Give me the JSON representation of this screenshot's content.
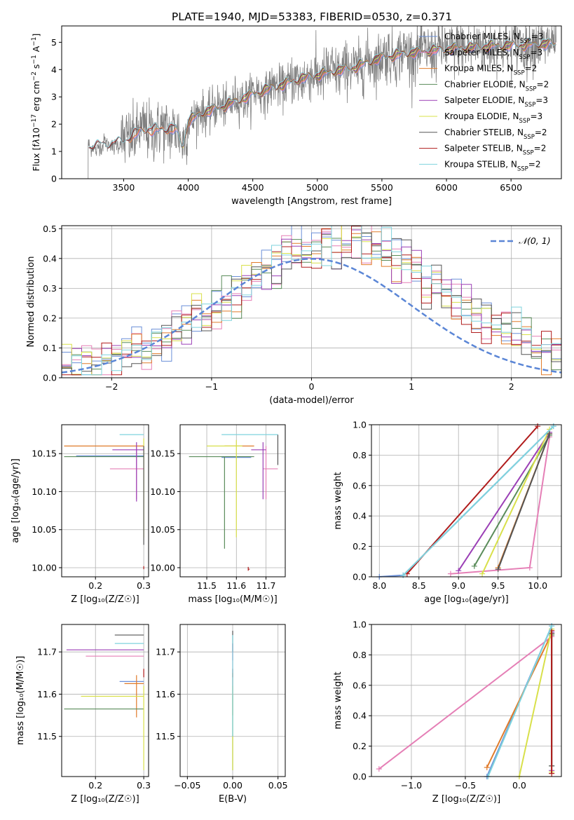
{
  "figure_title": "PLATE=1940, MJD=53383, FIBERID=0530, z=0.371",
  "colors": {
    "chab_miles": "#6a8fd8",
    "salp_miles": "#e57fb6",
    "krou_miles": "#e07b2a",
    "chab_elodie": "#5a8c5a",
    "salp_elodie": "#9b3fb6",
    "krou_elodie": "#d8e04a",
    "chab_stelib": "#555555",
    "salp_stelib": "#b01c1c",
    "krou_stelib": "#7fd3dd",
    "data": "#808080",
    "gauss": "#5b86d6"
  },
  "series_names": [
    {
      "key": "chab_miles",
      "label": "Chabrier MILES, N",
      "sub": "SSP",
      "tail": "=3"
    },
    {
      "key": "salp_miles",
      "label": "Salpeter MILES, N",
      "sub": "SSP",
      "tail": "=3"
    },
    {
      "key": "krou_miles",
      "label": "Kroupa MILES, N",
      "sub": "SSP",
      "tail": "=2"
    },
    {
      "key": "chab_elodie",
      "label": "Chabrier ELODIE, N",
      "sub": "SSP",
      "tail": "=2"
    },
    {
      "key": "salp_elodie",
      "label": "Salpeter ELODIE, N",
      "sub": "SSP",
      "tail": "=3"
    },
    {
      "key": "krou_elodie",
      "label": "Kroupa ELODIE, N",
      "sub": "SSP",
      "tail": "=3"
    },
    {
      "key": "chab_stelib",
      "label": "Chabrier STELIB, N",
      "sub": "SSP",
      "tail": "=2"
    },
    {
      "key": "salp_stelib",
      "label": "Salpeter STELIB, N",
      "sub": "SSP",
      "tail": "=2"
    },
    {
      "key": "krou_stelib",
      "label": "Kroupa STELIB, N",
      "sub": "SSP",
      "tail": "=2"
    }
  ],
  "labels": {
    "spec_x": "wavelength [Angstrom, rest frame]",
    "spec_y_html": "Flux [f<tspan font-style='italic'>λ</tspan>10<tspan baseline-shift='super' font-size='9'>−17</tspan> erg cm<tspan baseline-shift='super' font-size='9'>−2</tspan> s<tspan baseline-shift='super' font-size='9'>−1</tspan> A<tspan baseline-shift='super' font-size='9'>−1</tspan>]",
    "hist_x": "(data-model)/error",
    "hist_y": "Normed distribution",
    "hist_legend": "𝒩(0, 1)",
    "z_x": "Z [log₁₀(Z/Z☉)]",
    "mass_x": "mass [log₁₀(M/M☉)]",
    "age_y": "age  [log₁₀(age/yr)]",
    "mass_y": "mass [log₁₀(M/M☉)]",
    "massweight_y": "mass weight",
    "age_x": "age  [log₁₀(age/yr)]",
    "ebv_x": "E(B-V)"
  },
  "chart_data": [
    {
      "id": "spectrum",
      "type": "line",
      "xlabel": "wavelength [Angstrom, rest frame]",
      "ylabel": "Flux [fλ10^-17 erg cm^-2 s^-1 A^-1]",
      "xlim": [
        3020,
        6890
      ],
      "ylim": [
        0,
        5.6
      ],
      "xticks": [
        3500,
        4000,
        4500,
        5000,
        5500,
        6000,
        6500
      ],
      "yticks": [
        0,
        1,
        2,
        3,
        4,
        5
      ],
      "legend": "right",
      "continuum_knots": [
        [
          3230,
          1.15
        ],
        [
          3400,
          1.25
        ],
        [
          3500,
          1.35
        ],
        [
          3600,
          1.7
        ],
        [
          3700,
          1.8
        ],
        [
          3800,
          1.8
        ],
        [
          3900,
          1.85
        ],
        [
          3960,
          1.2
        ],
        [
          4000,
          2.1
        ],
        [
          4100,
          2.4
        ],
        [
          4300,
          2.7
        ],
        [
          4500,
          3.1
        ],
        [
          4700,
          3.4
        ],
        [
          4900,
          3.7
        ],
        [
          5100,
          3.9
        ],
        [
          5300,
          4.1
        ],
        [
          5500,
          4.45
        ],
        [
          5700,
          4.6
        ],
        [
          6000,
          4.75
        ],
        [
          6300,
          4.85
        ],
        [
          6600,
          4.9
        ],
        [
          6800,
          4.95
        ]
      ]
    },
    {
      "id": "residual_hist",
      "type": "bar",
      "xlabel": "(data-model)/error",
      "ylabel": "Normed distribution",
      "xlim": [
        -2.5,
        2.5
      ],
      "ylim": [
        0,
        0.51
      ],
      "xticks": [
        -2,
        -1,
        0,
        1,
        2
      ],
      "yticks": [
        0,
        0.1,
        0.2,
        0.3,
        0.4,
        0.5
      ],
      "bin_width": 0.1,
      "grid": true,
      "legend": "top-right",
      "gaussian": {
        "mean": 0,
        "sigma": 1
      }
    },
    {
      "id": "age_vs_Z",
      "type": "scatter",
      "xlabel": "Z [log10(Z/Zsun)]",
      "ylabel": "age [log10(age/yr)]",
      "xlim": [
        0.13,
        0.31
      ],
      "ylim": [
        9.988,
        10.188
      ],
      "xticks": [
        0.2,
        0.3
      ],
      "yticks": [
        10.0,
        10.05,
        10.1,
        10.15
      ],
      "points": [
        {
          "key": "chab_miles",
          "x": 0.3,
          "y": 10.147,
          "xl": 0.16,
          "xr": 0.3,
          "yd": 10.147,
          "yu": 10.147
        },
        {
          "key": "salp_miles",
          "x": 0.285,
          "y": 10.13,
          "xl": 0.23,
          "xr": 0.3,
          "yd": 10.09,
          "yu": 10.16
        },
        {
          "key": "krou_miles",
          "x": 0.3,
          "y": 10.16,
          "xl": 0.135,
          "xr": 0.3,
          "yd": 10.16,
          "yu": 10.16
        },
        {
          "key": "chab_elodie",
          "x": 0.3,
          "y": 10.146,
          "xl": 0.135,
          "xr": 0.3,
          "yd": 10.146,
          "yu": 10.146
        },
        {
          "key": "salp_elodie",
          "x": 0.285,
          "y": 10.155,
          "xl": 0.235,
          "xr": 0.3,
          "yd": 10.087,
          "yu": 10.165
        },
        {
          "key": "krou_elodie",
          "x": 0.3,
          "y": 10.165,
          "xl": 0.3,
          "xr": 0.3,
          "yd": 10.04,
          "yu": 10.17
        },
        {
          "key": "chab_stelib",
          "x": 0.3,
          "y": 10.13,
          "xl": 0.3,
          "xr": 0.3,
          "yd": 10.03,
          "yu": 10.16
        },
        {
          "key": "salp_stelib",
          "x": 0.3,
          "y": 10.0,
          "xl": 0.3,
          "xr": 0.3,
          "yd": 9.998,
          "yu": 10.002
        },
        {
          "key": "krou_stelib",
          "x": 0.3,
          "y": 10.175,
          "xl": 0.25,
          "xr": 0.3,
          "yd": 10.175,
          "yu": 10.175
        }
      ]
    },
    {
      "id": "age_vs_mass",
      "type": "scatter",
      "xlabel": "mass [log10(M/Msun)]",
      "ylabel": "",
      "xlim": [
        11.41,
        11.765
      ],
      "ylim": [
        9.988,
        10.188
      ],
      "xticks": [
        11.5,
        11.6,
        11.7
      ],
      "yticks": [
        10.0,
        10.05,
        10.1,
        10.15
      ],
      "points": [
        {
          "key": "chab_miles",
          "x": 11.63,
          "y": 10.145,
          "xl": 11.55,
          "xr": 11.65,
          "yd": 10.145,
          "yu": 10.145
        },
        {
          "key": "salp_miles",
          "x": 11.7,
          "y": 10.13,
          "xl": 11.69,
          "xr": 11.74,
          "yd": 10.09,
          "yu": 10.16
        },
        {
          "key": "krou_miles",
          "x": 11.62,
          "y": 10.16,
          "xl": 11.56,
          "xr": 11.66,
          "yd": 10.16,
          "yu": 10.16
        },
        {
          "key": "chab_elodie",
          "x": 11.56,
          "y": 10.146,
          "xl": 11.44,
          "xr": 11.66,
          "yd": 10.025,
          "yu": 10.146
        },
        {
          "key": "salp_elodie",
          "x": 11.69,
          "y": 10.155,
          "xl": 11.65,
          "xr": 11.7,
          "yd": 10.09,
          "yu": 10.165
        },
        {
          "key": "krou_elodie",
          "x": 11.6,
          "y": 10.16,
          "xl": 11.5,
          "xr": 11.62,
          "yd": 10.04,
          "yu": 10.168
        },
        {
          "key": "chab_stelib",
          "x": 11.74,
          "y": 10.16,
          "xl": 11.74,
          "xr": 11.74,
          "yd": 10.135,
          "yu": 10.175
        },
        {
          "key": "salp_stelib",
          "x": 11.64,
          "y": 9.998,
          "xl": 11.64,
          "xr": 11.645,
          "yd": 9.996,
          "yu": 10.001
        },
        {
          "key": "krou_stelib",
          "x": 11.61,
          "y": 10.175,
          "xl": 11.55,
          "xr": 11.74,
          "yd": 10.175,
          "yu": 10.175
        }
      ]
    },
    {
      "id": "massweight_vs_age",
      "type": "line",
      "xlabel": "age [log10(age/yr)]",
      "ylabel": "mass weight",
      "xlim": [
        7.9,
        10.3
      ],
      "ylim": [
        0,
        1.0
      ],
      "xticks": [
        8.0,
        8.5,
        9.0,
        9.5,
        10.0
      ],
      "yticks": [
        0,
        0.2,
        0.4,
        0.6,
        0.8,
        1.0
      ],
      "series": [
        {
          "key": "chab_miles",
          "x": [
            8.0,
            8.3,
            10.2
          ],
          "y": [
            0.0,
            0.01,
            0.99
          ]
        },
        {
          "key": "salp_miles",
          "x": [
            8.9,
            9.9,
            10.15
          ],
          "y": [
            0.02,
            0.06,
            0.92
          ]
        },
        {
          "key": "krou_miles",
          "x": [
            9.5,
            10.15
          ],
          "y": [
            0.06,
            0.94
          ]
        },
        {
          "key": "chab_elodie",
          "x": [
            9.2,
            10.15
          ],
          "y": [
            0.07,
            0.93
          ]
        },
        {
          "key": "salp_elodie",
          "x": [
            9.0,
            10.15
          ],
          "y": [
            0.04,
            0.95
          ]
        },
        {
          "key": "krou_elodie",
          "x": [
            9.3,
            10.15
          ],
          "y": [
            0.02,
            0.97
          ]
        },
        {
          "key": "chab_stelib",
          "x": [
            9.5,
            10.15
          ],
          "y": [
            0.05,
            0.94
          ]
        },
        {
          "key": "salp_stelib",
          "x": [
            8.35,
            10.0
          ],
          "y": [
            0.02,
            0.99
          ]
        },
        {
          "key": "krou_stelib",
          "x": [
            8.3,
            10.2
          ],
          "y": [
            0.01,
            0.99
          ]
        }
      ]
    },
    {
      "id": "mass_vs_Z",
      "type": "scatter",
      "xlabel": "Z [log10(Z/Zsun)]",
      "ylabel": "mass [log10(M/Msun)]",
      "xlim": [
        0.13,
        0.31
      ],
      "ylim": [
        11.405,
        11.765
      ],
      "xticks": [
        0.2,
        0.3
      ],
      "yticks": [
        11.5,
        11.6,
        11.7
      ],
      "points": [
        {
          "key": "chab_miles",
          "x": 0.3,
          "y": 11.63,
          "xl": 0.25,
          "xr": 0.3,
          "yd": 11.63,
          "yu": 11.63
        },
        {
          "key": "salp_miles",
          "x": 0.3,
          "y": 11.69,
          "xl": 0.18,
          "xr": 0.3,
          "yd": 11.69,
          "yu": 11.69
        },
        {
          "key": "krou_miles",
          "x": 0.285,
          "y": 11.625,
          "xl": 0.26,
          "xr": 0.3,
          "yd": 11.545,
          "yu": 11.645
        },
        {
          "key": "chab_elodie",
          "x": 0.3,
          "y": 11.565,
          "xl": 0.135,
          "xr": 0.3,
          "yd": 11.565,
          "yu": 11.565
        },
        {
          "key": "salp_elodie",
          "x": 0.3,
          "y": 11.705,
          "xl": 0.14,
          "xr": 0.3,
          "yd": 11.705,
          "yu": 11.705
        },
        {
          "key": "krou_elodie",
          "x": 0.3,
          "y": 11.595,
          "xl": 0.17,
          "xr": 0.3,
          "yd": 11.42,
          "yu": 11.62
        },
        {
          "key": "chab_stelib",
          "x": 0.3,
          "y": 11.74,
          "xl": 0.24,
          "xr": 0.3,
          "yd": 11.74,
          "yu": 11.74
        },
        {
          "key": "salp_stelib",
          "x": 0.3,
          "y": 11.65,
          "xl": 0.3,
          "xr": 0.3,
          "yd": 11.64,
          "yu": 11.66
        },
        {
          "key": "krou_stelib",
          "x": 0.3,
          "y": 11.72,
          "xl": 0.24,
          "xr": 0.3,
          "yd": 11.72,
          "yu": 11.72
        }
      ]
    },
    {
      "id": "mass_vs_ebv",
      "type": "scatter",
      "xlabel": "E(B-V)",
      "ylabel": "",
      "xlim": [
        -0.058,
        0.058
      ],
      "ylim": [
        11.405,
        11.765
      ],
      "xticks": [
        -0.05,
        0.0,
        0.05
      ],
      "yticks": [
        11.5,
        11.6,
        11.7
      ],
      "points": [
        {
          "key": "chab_miles",
          "x": 0.0,
          "y": 11.63,
          "xl": 0,
          "xr": 0,
          "yd": 11.6,
          "yu": 11.66
        },
        {
          "key": "salp_miles",
          "x": 0.0,
          "y": 11.69,
          "xl": 0,
          "xr": 0,
          "yd": 11.66,
          "yu": 11.72
        },
        {
          "key": "krou_miles",
          "x": 0.0,
          "y": 11.625,
          "xl": 0,
          "xr": 0,
          "yd": 11.55,
          "yu": 11.65
        },
        {
          "key": "chab_elodie",
          "x": 0.0,
          "y": 11.56,
          "xl": 0,
          "xr": 0,
          "yd": 11.42,
          "yu": 11.6
        },
        {
          "key": "salp_elodie",
          "x": 0.0,
          "y": 11.705,
          "xl": 0,
          "xr": 0,
          "yd": 11.68,
          "yu": 11.72
        },
        {
          "key": "krou_elodie",
          "x": 0.0,
          "y": 11.595,
          "xl": 0,
          "xr": 0,
          "yd": 11.42,
          "yu": 11.62
        },
        {
          "key": "chab_stelib",
          "x": 0.0,
          "y": 11.74,
          "xl": 0,
          "xr": 0,
          "yd": 11.7,
          "yu": 11.75
        },
        {
          "key": "salp_stelib",
          "x": 0.0,
          "y": 11.65,
          "xl": 0,
          "xr": 0,
          "yd": 11.64,
          "yu": 11.66
        },
        {
          "key": "krou_stelib",
          "x": 0.0,
          "y": 11.72,
          "xl": 0,
          "xr": 0,
          "yd": 11.5,
          "yu": 11.74
        }
      ]
    },
    {
      "id": "massweight_vs_Z",
      "type": "line",
      "xlabel": "Z [log10(Z/Zsun)]",
      "ylabel": "mass weight",
      "xlim": [
        -1.37,
        0.39
      ],
      "ylim": [
        0,
        1.0
      ],
      "xticks": [
        -1.0,
        -0.5,
        0.0
      ],
      "yticks": [
        0,
        0.2,
        0.4,
        0.6,
        0.8,
        1.0
      ],
      "series": [
        {
          "key": "chab_miles",
          "x": [
            -0.3,
            0.3
          ],
          "y": [
            0.0,
            0.99
          ]
        },
        {
          "key": "salp_miles",
          "x": [
            -1.3,
            0.3
          ],
          "y": [
            0.05,
            0.92
          ]
        },
        {
          "key": "krou_miles",
          "x": [
            -0.3,
            0.3
          ],
          "y": [
            0.06,
            0.94
          ]
        },
        {
          "key": "chab_elodie",
          "x": [
            0.3,
            0.3
          ],
          "y": [
            0.07,
            0.93
          ]
        },
        {
          "key": "salp_elodie",
          "x": [
            0.3,
            0.3
          ],
          "y": [
            0.04,
            0.95
          ]
        },
        {
          "key": "krou_elodie",
          "x": [
            0.0,
            0.3,
            0.3
          ],
          "y": [
            0.0,
            0.97,
            0.03
          ]
        },
        {
          "key": "chab_stelib",
          "x": [
            0.3,
            0.3
          ],
          "y": [
            0.07,
            0.94
          ]
        },
        {
          "key": "salp_stelib",
          "x": [
            0.3,
            0.3
          ],
          "y": [
            0.02,
            0.96
          ]
        },
        {
          "key": "krou_stelib",
          "x": [
            -0.29,
            0.3
          ],
          "y": [
            0.0,
            0.99
          ]
        }
      ]
    }
  ]
}
